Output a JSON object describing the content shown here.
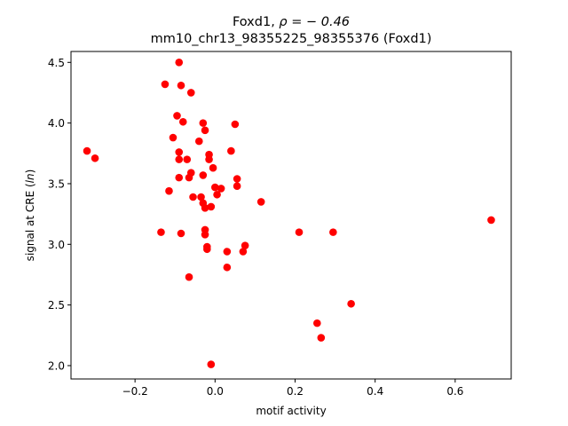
{
  "chart_data": {
    "type": "scatter",
    "title_line1_prefix": "Foxd1, ",
    "title_line1_rho": "ρ = − 0.46",
    "title_line2": "mm10_chr13_98355225_98355376 (Foxd1)",
    "xlabel": "motif activity",
    "ylabel_prefix": "signal at CRE (",
    "ylabel_ln": "ln",
    "ylabel_suffix": ")",
    "xlim": [
      -0.36,
      0.74
    ],
    "ylim": [
      1.89,
      4.59
    ],
    "xticks": [
      -0.2,
      0.0,
      0.2,
      0.4,
      0.6
    ],
    "xtick_labels": [
      "−0.2",
      "0.0",
      "0.2",
      "0.4",
      "0.6"
    ],
    "yticks": [
      2.0,
      2.5,
      3.0,
      3.5,
      4.0,
      4.5
    ],
    "ytick_labels": [
      "2.0",
      "2.5",
      "3.0",
      "3.5",
      "4.0",
      "4.5"
    ],
    "grid": false,
    "marker_color": "#ff0000",
    "points": [
      {
        "x": -0.32,
        "y": 3.77
      },
      {
        "x": -0.3,
        "y": 3.71
      },
      {
        "x": -0.135,
        "y": 3.1
      },
      {
        "x": -0.125,
        "y": 4.32
      },
      {
        "x": -0.115,
        "y": 3.44
      },
      {
        "x": -0.105,
        "y": 3.88
      },
      {
        "x": -0.095,
        "y": 4.06
      },
      {
        "x": -0.09,
        "y": 4.5
      },
      {
        "x": -0.09,
        "y": 3.76
      },
      {
        "x": -0.09,
        "y": 3.7
      },
      {
        "x": -0.09,
        "y": 3.55
      },
      {
        "x": -0.085,
        "y": 4.31
      },
      {
        "x": -0.085,
        "y": 3.09
      },
      {
        "x": -0.08,
        "y": 4.01
      },
      {
        "x": -0.07,
        "y": 3.7
      },
      {
        "x": -0.065,
        "y": 3.55
      },
      {
        "x": -0.065,
        "y": 2.73
      },
      {
        "x": -0.06,
        "y": 4.25
      },
      {
        "x": -0.06,
        "y": 3.59
      },
      {
        "x": -0.055,
        "y": 3.39
      },
      {
        "x": -0.04,
        "y": 3.85
      },
      {
        "x": -0.035,
        "y": 3.39
      },
      {
        "x": -0.03,
        "y": 4.0
      },
      {
        "x": -0.03,
        "y": 3.57
      },
      {
        "x": -0.03,
        "y": 3.34
      },
      {
        "x": -0.025,
        "y": 3.94
      },
      {
        "x": -0.025,
        "y": 3.3
      },
      {
        "x": -0.025,
        "y": 3.12
      },
      {
        "x": -0.025,
        "y": 3.08
      },
      {
        "x": -0.02,
        "y": 2.98
      },
      {
        "x": -0.02,
        "y": 2.96
      },
      {
        "x": -0.015,
        "y": 3.74
      },
      {
        "x": -0.015,
        "y": 3.7
      },
      {
        "x": -0.01,
        "y": 3.31
      },
      {
        "x": -0.01,
        "y": 2.01
      },
      {
        "x": -0.005,
        "y": 3.63
      },
      {
        "x": 0.0,
        "y": 3.47
      },
      {
        "x": 0.005,
        "y": 3.41
      },
      {
        "x": 0.015,
        "y": 3.46
      },
      {
        "x": 0.03,
        "y": 2.94
      },
      {
        "x": 0.03,
        "y": 2.81
      },
      {
        "x": 0.04,
        "y": 3.77
      },
      {
        "x": 0.05,
        "y": 3.99
      },
      {
        "x": 0.055,
        "y": 3.54
      },
      {
        "x": 0.055,
        "y": 3.48
      },
      {
        "x": 0.07,
        "y": 2.94
      },
      {
        "x": 0.075,
        "y": 2.99
      },
      {
        "x": 0.115,
        "y": 3.35
      },
      {
        "x": 0.21,
        "y": 3.1
      },
      {
        "x": 0.255,
        "y": 2.35
      },
      {
        "x": 0.265,
        "y": 2.23
      },
      {
        "x": 0.295,
        "y": 3.1
      },
      {
        "x": 0.34,
        "y": 2.51
      },
      {
        "x": 0.69,
        "y": 3.2
      }
    ]
  }
}
